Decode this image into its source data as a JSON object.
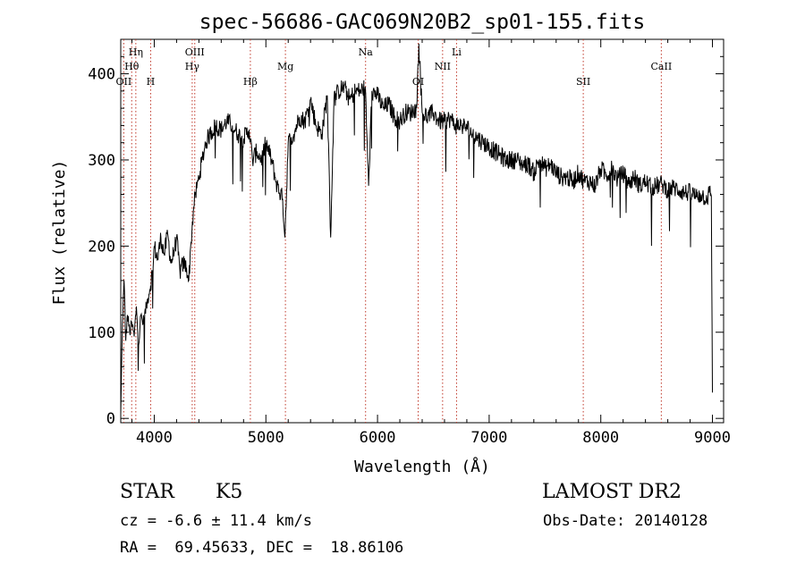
{
  "chart_data": {
    "type": "line",
    "title": "spec-56686-GAC069N20B2_sp01-155.fits",
    "xlabel": "Wavelength (Å)",
    "ylabel": "Flux (relative)",
    "xlim": [
      3700,
      9100
    ],
    "ylim": [
      -5,
      440
    ],
    "xticks": [
      4000,
      5000,
      6000,
      7000,
      8000,
      9000
    ],
    "yticks": [
      0,
      100,
      200,
      300,
      400
    ],
    "grid": false,
    "series": [
      {
        "x": [
          3700,
          3715,
          3730,
          3745,
          3760,
          3780,
          3800,
          3820,
          3840,
          3860,
          3880,
          3900,
          3930,
          3960,
          3990,
          4000,
          4030,
          4060,
          4090,
          4120,
          4150,
          4180,
          4200,
          4230,
          4260,
          4290,
          4310,
          4330,
          4350,
          4370,
          4400,
          4430,
          4460,
          4500,
          4550,
          4600,
          4650,
          4700,
          4750,
          4800,
          4850,
          4880,
          4920,
          4960,
          5000,
          5050,
          5100,
          5150,
          5170,
          5200,
          5250,
          5300,
          5350,
          5400,
          5450,
          5500,
          5550,
          5580,
          5610,
          5650,
          5700,
          5750,
          5800,
          5850,
          5890,
          5920,
          5950,
          6000,
          6050,
          6100,
          6150,
          6200,
          6250,
          6300,
          6350,
          6370,
          6400,
          6450,
          6500,
          6550,
          6600,
          6650,
          6700,
          6750,
          6800,
          6850,
          6900,
          6950,
          7000,
          7050,
          7100,
          7150,
          7200,
          7250,
          7300,
          7350,
          7400,
          7450,
          7500,
          7550,
          7600,
          7650,
          7700,
          7750,
          7800,
          7850,
          7900,
          7950,
          8000,
          8050,
          8100,
          8150,
          8200,
          8250,
          8300,
          8350,
          8400,
          8450,
          8500,
          8550,
          8600,
          8650,
          8700,
          8750,
          8800,
          8850,
          8900,
          8950,
          8970,
          8990,
          9000
        ],
        "y": [
          5,
          110,
          160,
          90,
          120,
          100,
          110,
          95,
          130,
          85,
          120,
          110,
          130,
          150,
          175,
          200,
          185,
          210,
          190,
          215,
          180,
          195,
          210,
          170,
          180,
          175,
          160,
          205,
          240,
          260,
          280,
          300,
          320,
          330,
          340,
          335,
          345,
          340,
          330,
          325,
          335,
          300,
          310,
          300,
          320,
          300,
          270,
          255,
          210,
          320,
          330,
          350,
          345,
          370,
          340,
          330,
          375,
          210,
          370,
          380,
          385,
          370,
          380,
          380,
          385,
          270,
          380,
          375,
          360,
          365,
          350,
          345,
          355,
          355,
          360,
          435,
          355,
          350,
          355,
          345,
          345,
          348,
          340,
          340,
          338,
          330,
          325,
          320,
          315,
          310,
          305,
          300,
          300,
          300,
          295,
          295,
          285,
          300,
          290,
          295,
          285,
          280,
          280,
          275,
          285,
          275,
          275,
          270,
          290,
          282,
          290,
          278,
          285,
          272,
          280,
          270,
          275,
          268,
          270,
          272,
          265,
          268,
          265,
          262,
          262,
          258,
          260,
          255,
          262,
          258,
          30
        ]
      }
    ],
    "annotations": [
      {
        "label": "OII",
        "x": 3727
      },
      {
        "label": "Hθ",
        "x": 3798
      },
      {
        "label": "Hη",
        "x": 3835
      },
      {
        "label": "H",
        "x": 3968
      },
      {
        "label": "OIII",
        "x": 4363
      },
      {
        "label": "Hγ",
        "x": 4340
      },
      {
        "label": "Hβ",
        "x": 4861
      },
      {
        "label": "Mg",
        "x": 5175
      },
      {
        "label": "Na",
        "x": 5893
      },
      {
        "label": "OI",
        "x": 6364
      },
      {
        "label": "NII",
        "x": 6583
      },
      {
        "label": "Li",
        "x": 6708
      },
      {
        "label": "SII",
        "x": 7843
      },
      {
        "label": "CaII",
        "x": 8542
      }
    ]
  },
  "footer": {
    "object_class": "STAR",
    "object_subclass": "K5",
    "survey": "LAMOST DR2",
    "redshift_line": "cz = -6.6 ± 11.4 km/s",
    "obs_date": "Obs-Date: 20140128",
    "coords_line": "RA =  69.45633, DEC =  18.86106"
  }
}
